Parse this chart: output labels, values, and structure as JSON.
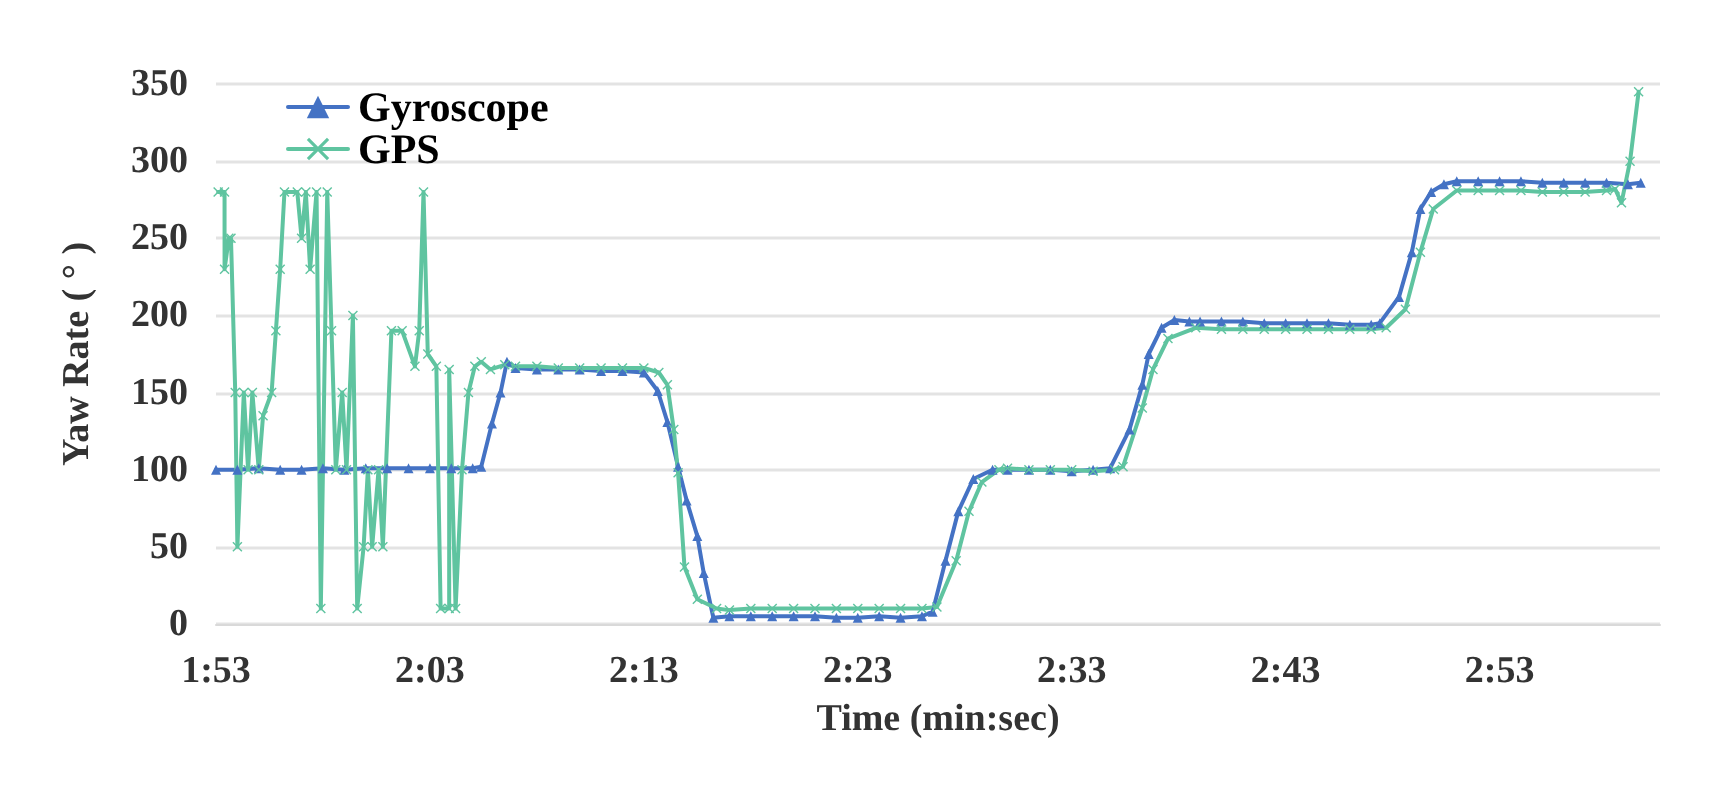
{
  "chart_data": {
    "type": "line",
    "xlabel": "Time (min:sec)",
    "ylabel": "Yaw Rate ( ° )",
    "xlim": [
      113,
      180.5
    ],
    "xticks": [
      {
        "value": 113,
        "label": "1:53"
      },
      {
        "value": 123,
        "label": "2:03"
      },
      {
        "value": 133,
        "label": "2:13"
      },
      {
        "value": 143,
        "label": "2:23"
      },
      {
        "value": 153,
        "label": "2:33"
      },
      {
        "value": 163,
        "label": "2:43"
      },
      {
        "value": 173,
        "label": "2:53"
      }
    ],
    "ylim": [
      0,
      350
    ],
    "yticks": [
      0,
      50,
      100,
      150,
      200,
      250,
      300,
      350
    ],
    "grid": "y",
    "legend": "top left",
    "line_style": "solid",
    "series": [
      {
        "name": "Gyroscope",
        "color": "#4472c4",
        "marker": "triangle",
        "x": [
          113,
          114,
          115,
          116,
          117,
          118,
          119,
          120,
          121,
          122,
          123,
          124,
          125,
          125.4,
          125.9,
          126.3,
          126.6,
          127,
          128,
          129,
          130,
          131,
          132,
          133,
          133.65,
          134.1,
          134.6,
          135,
          135.5,
          135.8,
          136.25,
          137,
          138,
          139,
          140,
          141,
          142,
          143,
          144,
          145,
          146,
          146.5,
          147.1,
          147.7,
          148.4,
          149.3,
          150,
          151,
          152,
          153,
          154,
          154.8,
          155.7,
          156.3,
          156.6,
          157.2,
          157.8,
          158.5,
          159,
          160,
          161,
          162,
          163,
          164,
          165,
          166,
          167,
          167.4,
          168.3,
          168.9,
          169.3,
          169.8,
          170.4,
          171,
          172,
          173,
          174,
          175,
          176,
          177,
          178,
          179,
          179.6
        ],
        "values": [
          100,
          100,
          101,
          100,
          100,
          101,
          100,
          101,
          101,
          101,
          101,
          101,
          101,
          102,
          130,
          150,
          170,
          166,
          165,
          165,
          165,
          164,
          164,
          163,
          151,
          131,
          102,
          80,
          57,
          33,
          4,
          5,
          5,
          5,
          5,
          5,
          4,
          4,
          5,
          4,
          5,
          8,
          41,
          73,
          94,
          100,
          100,
          100,
          100,
          99,
          100,
          101,
          126,
          155,
          175,
          192,
          197,
          196,
          196,
          196,
          196,
          195,
          195,
          195,
          195,
          194,
          194,
          195,
          212,
          241,
          269,
          280,
          285,
          287,
          287,
          287,
          287,
          286,
          286,
          286,
          286,
          285,
          286
        ]
      },
      {
        "name": "GPS",
        "color": "#5fc4a0",
        "marker": "cross",
        "x": [
          113.1,
          113.4,
          113.4,
          113.6,
          113.7,
          113.9,
          114,
          114.3,
          114.5,
          114.7,
          115,
          115.2,
          115.6,
          115.8,
          116,
          116.2,
          116.8,
          117,
          117.2,
          117.4,
          117.7,
          117.9,
          118.2,
          118.4,
          118.6,
          118.9,
          119.1,
          119.4,
          119.6,
          119.9,
          120.1,
          120.3,
          120.6,
          120.8,
          121.2,
          121.7,
          122.3,
          122.5,
          122.7,
          122.9,
          123.3,
          123.5,
          123.9,
          123.9,
          124.2,
          124.5,
          124.8,
          125.1,
          125.4,
          125.83,
          126.5,
          127,
          128,
          129,
          130,
          131,
          132,
          133,
          133.7,
          134.1,
          134.4,
          134.6,
          134.9,
          135.5,
          136.4,
          137,
          138,
          139,
          140,
          141,
          142,
          143,
          144,
          145,
          146,
          146.7,
          147.6,
          148.2,
          148.8,
          149.6,
          150,
          151,
          152,
          153,
          154,
          155,
          155.4,
          156.3,
          156.8,
          157.5,
          158.8,
          160,
          161,
          162,
          163,
          164,
          165,
          166,
          167,
          167.7,
          168.6,
          169.3,
          169.9,
          171,
          172,
          173,
          174,
          175,
          176,
          177,
          178,
          178.4,
          178.7,
          179.1,
          179.5
        ],
        "values": [
          280,
          280,
          230,
          250,
          250,
          150,
          50,
          150,
          100,
          150,
          100,
          135,
          150,
          190,
          230,
          280,
          280,
          250,
          280,
          230,
          280,
          10,
          280,
          190,
          100,
          150,
          100,
          200,
          10,
          50,
          100,
          50,
          100,
          50,
          190,
          190,
          167,
          190,
          280,
          175,
          167,
          10,
          10,
          165,
          10,
          100,
          150,
          167,
          170,
          165,
          168,
          167,
          167,
          166,
          166,
          166,
          166,
          166,
          163,
          155,
          126,
          98,
          37,
          16,
          10,
          9,
          10,
          10,
          10,
          10,
          10,
          10,
          10,
          10,
          10,
          11,
          41,
          73,
          92,
          100,
          101,
          100,
          100,
          100,
          99,
          100,
          102,
          140,
          165,
          185,
          192,
          191,
          191,
          191,
          191,
          191,
          191,
          191,
          191,
          192,
          204,
          241,
          269,
          281,
          281,
          281,
          281,
          280,
          280,
          280,
          281,
          282,
          273,
          300,
          345
        ]
      }
    ]
  }
}
